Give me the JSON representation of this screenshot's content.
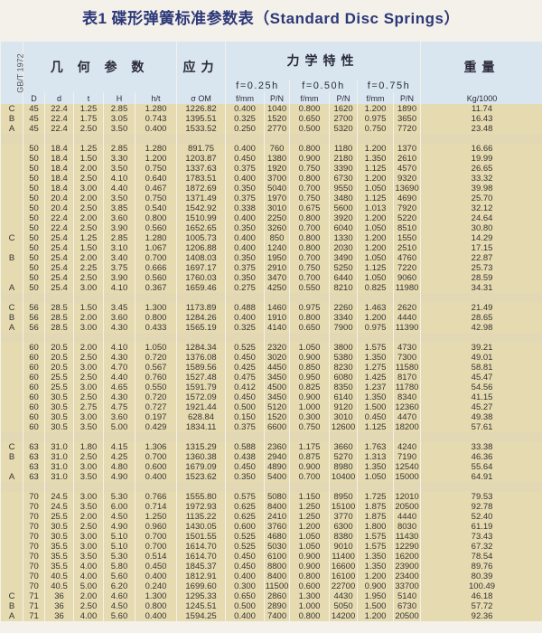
{
  "title": "表1 碟形弹簧标准参数表（Standard Disc Springs）",
  "header": {
    "standard": "GB/T 1972",
    "geometry": "几 何 参 数",
    "stress": "应力",
    "mechanics": "力学特性",
    "weight": "重量",
    "f025": "f=0.25h",
    "f050": "f=0.50h",
    "f075": "f=0.75h",
    "columns": [
      "D",
      "d",
      "t",
      "H",
      "h/t",
      "σ OM",
      "f/mm",
      "P/N",
      "f/mm",
      "P/N",
      "f/mm",
      "P/N",
      "Kg/1000"
    ]
  },
  "colors": {
    "title": "#2c3878",
    "header_bg": "#d9e6ef",
    "row_bg": "#e6dab0"
  },
  "rows": [
    [
      "C",
      "45",
      "22.4",
      "1.25",
      "2.85",
      "1.280",
      "1226.82",
      "0.400",
      "1040",
      "0.800",
      "1620",
      "1.200",
      "1890",
      "11.74"
    ],
    [
      "B",
      "45",
      "22.4",
      "1.75",
      "3.05",
      "0.743",
      "1395.51",
      "0.325",
      "1520",
      "0.650",
      "2700",
      "0.975",
      "3650",
      "16.43"
    ],
    [
      "A",
      "45",
      "22.4",
      "2.50",
      "3.50",
      "0.400",
      "1533.52",
      "0.250",
      "2770",
      "0.500",
      "5320",
      "0.750",
      "7720",
      "23.48"
    ],
    [],
    [
      "",
      "50",
      "18.4",
      "1.25",
      "2.85",
      "1.280",
      "891.75",
      "0.400",
      "760",
      "0.800",
      "1180",
      "1.200",
      "1370",
      "16.66"
    ],
    [
      "",
      "50",
      "18.4",
      "1.50",
      "3.30",
      "1.200",
      "1203.87",
      "0.450",
      "1380",
      "0.900",
      "2180",
      "1.350",
      "2610",
      "19.99"
    ],
    [
      "",
      "50",
      "18.4",
      "2.00",
      "3.50",
      "0.750",
      "1337.63",
      "0.375",
      "1920",
      "0.750",
      "3390",
      "1.125",
      "4570",
      "26.65"
    ],
    [
      "",
      "50",
      "18.4",
      "2.50",
      "4.10",
      "0.640",
      "1783.51",
      "0.400",
      "3700",
      "0.800",
      "6730",
      "1.200",
      "9320",
      "33.32"
    ],
    [
      "",
      "50",
      "18.4",
      "3.00",
      "4.40",
      "0.467",
      "1872.69",
      "0.350",
      "5040",
      "0.700",
      "9550",
      "1.050",
      "13690",
      "39.98"
    ],
    [
      "",
      "50",
      "20.4",
      "2.00",
      "3.50",
      "0.750",
      "1371.49",
      "0.375",
      "1970",
      "0.750",
      "3480",
      "1.125",
      "4690",
      "25.70"
    ],
    [
      "",
      "50",
      "20.4",
      "2.50",
      "3.85",
      "0.540",
      "1542.92",
      "0.338",
      "3010",
      "0.675",
      "5600",
      "1.013",
      "7920",
      "32.12"
    ],
    [
      "",
      "50",
      "22.4",
      "2.00",
      "3.60",
      "0.800",
      "1510.99",
      "0.400",
      "2250",
      "0.800",
      "3920",
      "1.200",
      "5220",
      "24.64"
    ],
    [
      "",
      "50",
      "22.4",
      "2.50",
      "3.90",
      "0.560",
      "1652.65",
      "0.350",
      "3260",
      "0.700",
      "6040",
      "1.050",
      "8510",
      "30.80"
    ],
    [
      "C",
      "50",
      "25.4",
      "1.25",
      "2.85",
      "1.280",
      "1005.73",
      "0.400",
      "850",
      "0.800",
      "1330",
      "1.200",
      "1550",
      "14.29"
    ],
    [
      "",
      "50",
      "25.4",
      "1.50",
      "3.10",
      "1.067",
      "1206.88",
      "0.400",
      "1240",
      "0.800",
      "2030",
      "1.200",
      "2510",
      "17.15"
    ],
    [
      "B",
      "50",
      "25.4",
      "2.00",
      "3.40",
      "0.700",
      "1408.03",
      "0.350",
      "1950",
      "0.700",
      "3490",
      "1.050",
      "4760",
      "22.87"
    ],
    [
      "",
      "50",
      "25.4",
      "2.25",
      "3.75",
      "0.666",
      "1697.17",
      "0.375",
      "2910",
      "0.750",
      "5250",
      "1.125",
      "7220",
      "25.73"
    ],
    [
      "",
      "50",
      "25.4",
      "2.50",
      "3.90",
      "0.560",
      "1760.03",
      "0.350",
      "3470",
      "0.700",
      "6440",
      "1.050",
      "9060",
      "28.59"
    ],
    [
      "A",
      "50",
      "25.4",
      "3.00",
      "4.10",
      "0.367",
      "1659.46",
      "0.275",
      "4250",
      "0.550",
      "8210",
      "0.825",
      "11980",
      "34.31"
    ],
    [],
    [
      "C",
      "56",
      "28.5",
      "1.50",
      "3.45",
      "1.300",
      "1173.89",
      "0.488",
      "1460",
      "0.975",
      "2260",
      "1.463",
      "2620",
      "21.49"
    ],
    [
      "B",
      "56",
      "28.5",
      "2.00",
      "3.60",
      "0.800",
      "1284.26",
      "0.400",
      "1910",
      "0.800",
      "3340",
      "1.200",
      "4440",
      "28.65"
    ],
    [
      "A",
      "56",
      "28.5",
      "3.00",
      "4.30",
      "0.433",
      "1565.19",
      "0.325",
      "4140",
      "0.650",
      "7900",
      "0.975",
      "11390",
      "42.98"
    ],
    [],
    [
      "",
      "60",
      "20.5",
      "2.00",
      "4.10",
      "1.050",
      "1284.34",
      "0.525",
      "2320",
      "1.050",
      "3800",
      "1.575",
      "4730",
      "39.21"
    ],
    [
      "",
      "60",
      "20.5",
      "2.50",
      "4.30",
      "0.720",
      "1376.08",
      "0.450",
      "3020",
      "0.900",
      "5380",
      "1.350",
      "7300",
      "49.01"
    ],
    [
      "",
      "60",
      "20.5",
      "3.00",
      "4.70",
      "0.567",
      "1589.56",
      "0.425",
      "4450",
      "0.850",
      "8230",
      "1.275",
      "11580",
      "58.81"
    ],
    [
      "",
      "60",
      "25.5",
      "2.50",
      "4.40",
      "0.760",
      "1527.48",
      "0.475",
      "3450",
      "0.950",
      "6080",
      "1.425",
      "8170",
      "45.47"
    ],
    [
      "",
      "60",
      "25.5",
      "3.00",
      "4.65",
      "0.550",
      "1591.79",
      "0.412",
      "4500",
      "0.825",
      "8350",
      "1.237",
      "11780",
      "54.56"
    ],
    [
      "",
      "60",
      "30.5",
      "2.50",
      "4.30",
      "0.720",
      "1572.09",
      "0.450",
      "3450",
      "0.900",
      "6140",
      "1.350",
      "8340",
      "41.15"
    ],
    [
      "",
      "60",
      "30.5",
      "2.75",
      "4.75",
      "0.727",
      "1921.44",
      "0.500",
      "5120",
      "1.000",
      "9120",
      "1.500",
      "12360",
      "45.27"
    ],
    [
      "",
      "60",
      "30.5",
      "3.00",
      "3.60",
      "0.197",
      "628.84",
      "0.150",
      "1520",
      "0.300",
      "3010",
      "0.450",
      "4470",
      "49.38"
    ],
    [
      "",
      "60",
      "30.5",
      "3.50",
      "5.00",
      "0.429",
      "1834.11",
      "0.375",
      "6600",
      "0.750",
      "12600",
      "1.125",
      "18200",
      "57.61"
    ],
    [],
    [
      "C",
      "63",
      "31.0",
      "1.80",
      "4.15",
      "1.306",
      "1315.29",
      "0.588",
      "2360",
      "1.175",
      "3660",
      "1.763",
      "4240",
      "33.38"
    ],
    [
      "B",
      "63",
      "31.0",
      "2.50",
      "4.25",
      "0.700",
      "1360.38",
      "0.438",
      "2940",
      "0.875",
      "5270",
      "1.313",
      "7190",
      "46.36"
    ],
    [
      "",
      "63",
      "31.0",
      "3.00",
      "4.80",
      "0.600",
      "1679.09",
      "0.450",
      "4890",
      "0.900",
      "8980",
      "1.350",
      "12540",
      "55.64"
    ],
    [
      "A",
      "63",
      "31.0",
      "3.50",
      "4.90",
      "0.400",
      "1523.62",
      "0.350",
      "5400",
      "0.700",
      "10400",
      "1.050",
      "15000",
      "64.91"
    ],
    [],
    [
      "",
      "70",
      "24.5",
      "3.00",
      "5.30",
      "0.766",
      "1555.80",
      "0.575",
      "5080",
      "1.150",
      "8950",
      "1.725",
      "12010",
      "79.53"
    ],
    [
      "",
      "70",
      "24.5",
      "3.50",
      "6.00",
      "0.714",
      "1972.93",
      "0.625",
      "8400",
      "1.250",
      "15100",
      "1.875",
      "20500",
      "92.78"
    ],
    [
      "",
      "70",
      "25.5",
      "2.00",
      "4.50",
      "1.250",
      "1135.22",
      "0.625",
      "2410",
      "1.250",
      "3770",
      "1.875",
      "4440",
      "52.40"
    ],
    [
      "",
      "70",
      "30.5",
      "2.50",
      "4.90",
      "0.960",
      "1430.05",
      "0.600",
      "3760",
      "1.200",
      "6300",
      "1.800",
      "8030",
      "61.19"
    ],
    [
      "",
      "70",
      "30.5",
      "3.00",
      "5.10",
      "0.700",
      "1501.55",
      "0.525",
      "4680",
      "1.050",
      "8380",
      "1.575",
      "11430",
      "73.43"
    ],
    [
      "",
      "70",
      "35.5",
      "3.00",
      "5.10",
      "0.700",
      "1614.70",
      "0.525",
      "5030",
      "1.050",
      "9010",
      "1.575",
      "12290",
      "67.32"
    ],
    [
      "",
      "70",
      "35.5",
      "3.50",
      "5.30",
      "0.514",
      "1614.70",
      "0.450",
      "6100",
      "0.900",
      "11400",
      "1.350",
      "16200",
      "78.54"
    ],
    [
      "",
      "70",
      "35.5",
      "4.00",
      "5.80",
      "0.450",
      "1845.37",
      "0.450",
      "8800",
      "0.900",
      "16600",
      "1.350",
      "23900",
      "89.76"
    ],
    [
      "",
      "70",
      "40.5",
      "4.00",
      "5.60",
      "0.400",
      "1812.91",
      "0.400",
      "8400",
      "0.800",
      "16100",
      "1.200",
      "23400",
      "80.39"
    ],
    [
      "",
      "70",
      "40.5",
      "5.00",
      "6.20",
      "0.240",
      "1699.60",
      "0.300",
      "11500",
      "0.600",
      "22700",
      "0.900",
      "33700",
      "100.49"
    ],
    [
      "C",
      "71",
      "36",
      "2.00",
      "4.60",
      "1.300",
      "1295.33",
      "0.650",
      "2860",
      "1.300",
      "4430",
      "1.950",
      "5140",
      "46.18"
    ],
    [
      "B",
      "71",
      "36",
      "2.50",
      "4.50",
      "0.800",
      "1245.51",
      "0.500",
      "2890",
      "1.000",
      "5050",
      "1.500",
      "6730",
      "57.72"
    ],
    [
      "A",
      "71",
      "36",
      "4.00",
      "5.60",
      "0.400",
      "1594.25",
      "0.400",
      "7400",
      "0.800",
      "14200",
      "1.200",
      "20500",
      "92.36"
    ]
  ]
}
